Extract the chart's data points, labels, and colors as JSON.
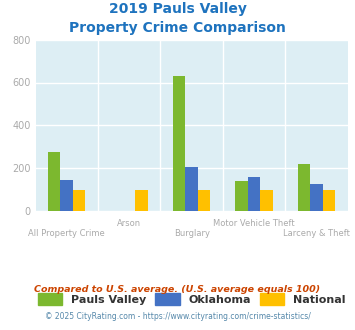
{
  "title_line1": "2019 Pauls Valley",
  "title_line2": "Property Crime Comparison",
  "categories": [
    "All Property Crime",
    "Arson",
    "Burglary",
    "Motor Vehicle Theft",
    "Larceny & Theft"
  ],
  "pauls_valley": [
    275,
    0,
    630,
    140,
    220
  ],
  "oklahoma": [
    145,
    0,
    205,
    160,
    125
  ],
  "national": [
    100,
    100,
    100,
    100,
    100
  ],
  "color_pv": "#7cb82f",
  "color_ok": "#4472c4",
  "color_nat": "#ffc000",
  "bg_color": "#ddeef4",
  "title_color": "#1e73be",
  "tick_color": "#aaaaaa",
  "legend_label_pv": "Pauls Valley",
  "legend_label_ok": "Oklahoma",
  "legend_label_nat": "National",
  "footnote1": "Compared to U.S. average. (U.S. average equals 100)",
  "footnote2": "© 2025 CityRating.com - https://www.cityrating.com/crime-statistics/",
  "ylim": [
    0,
    800
  ],
  "yticks": [
    0,
    200,
    400,
    600,
    800
  ],
  "grid_color": "#ffffff",
  "bar_width": 0.2
}
